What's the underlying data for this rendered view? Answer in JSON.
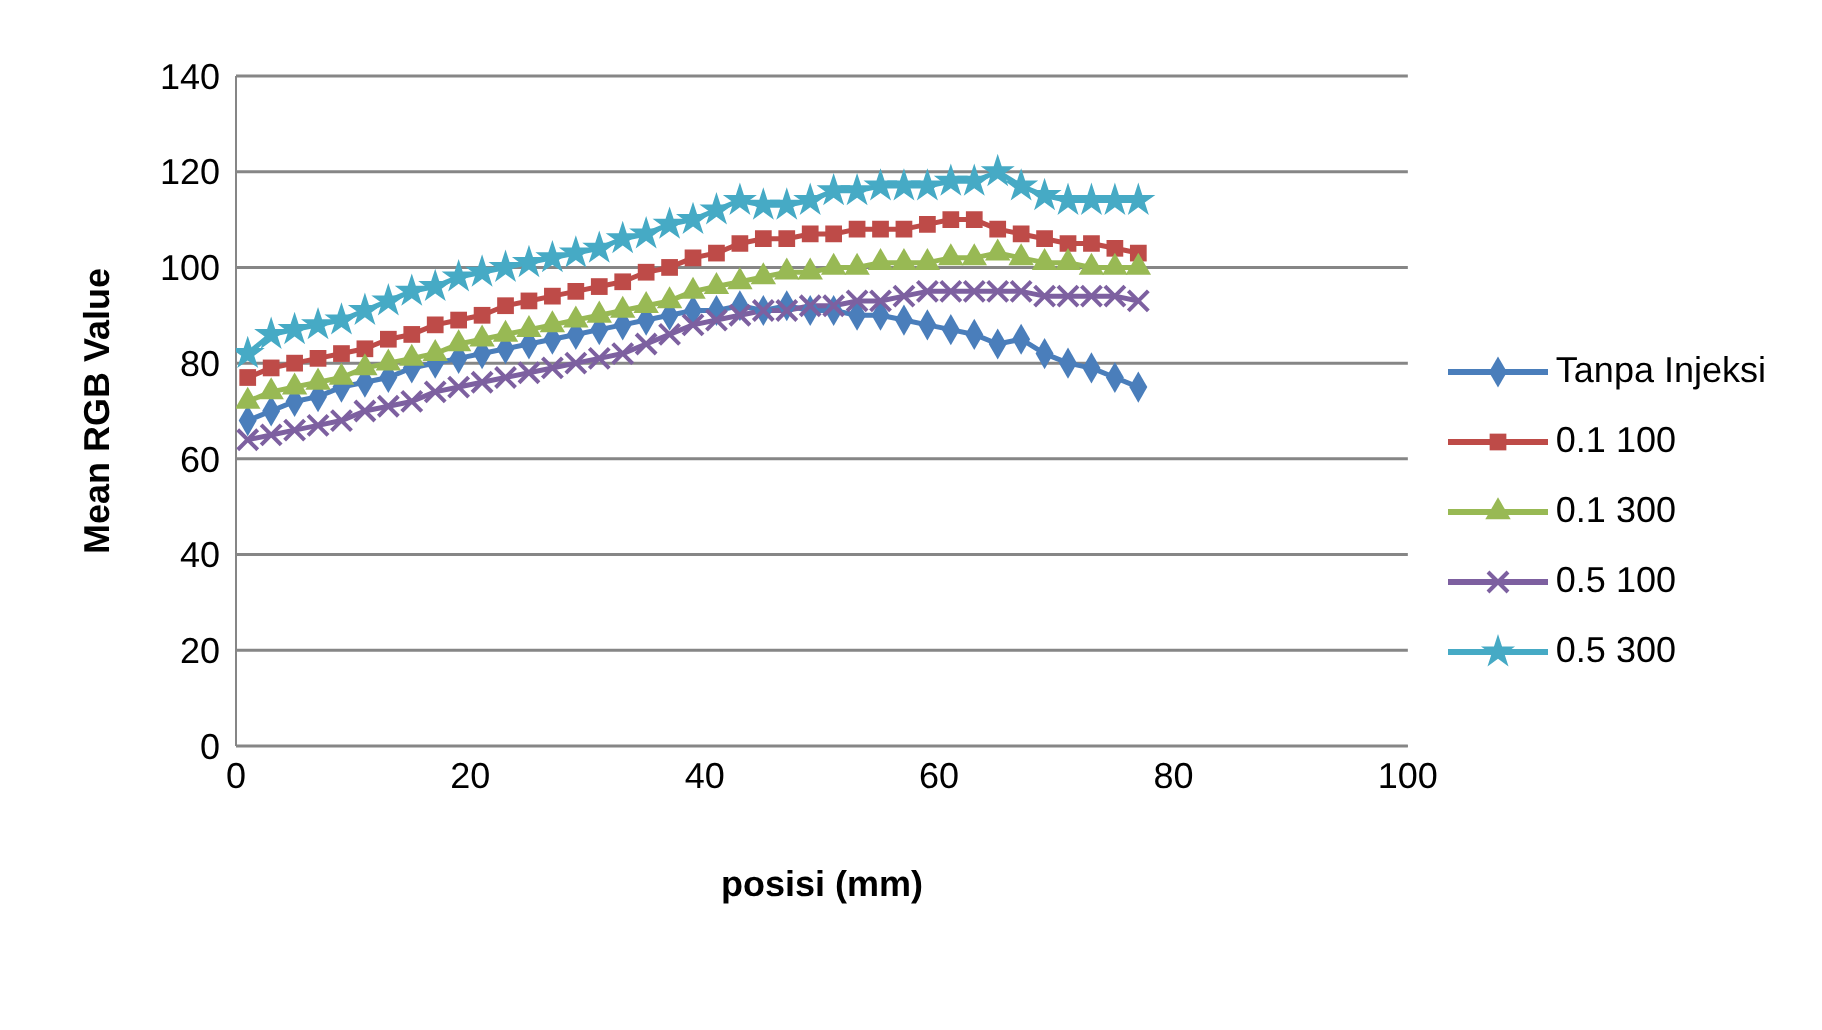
{
  "chart_data": {
    "type": "line",
    "xlabel": "posisi (mm)",
    "ylabel": "Mean RGB Value",
    "x": [
      1,
      3,
      5,
      7,
      9,
      11,
      13,
      15,
      17,
      19,
      21,
      23,
      25,
      27,
      29,
      31,
      33,
      35,
      37,
      39,
      41,
      43,
      45,
      47,
      49,
      51,
      53,
      55,
      57,
      59,
      61,
      63,
      65,
      67,
      69,
      71,
      73,
      75,
      77
    ],
    "series": [
      {
        "name": "Tanpa Injeksi",
        "color": "#4a7ebb",
        "marker": "diamond",
        "values": [
          68,
          70,
          72,
          73,
          75,
          76,
          77,
          79,
          80,
          81,
          82,
          83,
          84,
          85,
          86,
          87,
          88,
          89,
          90,
          91,
          91,
          92,
          91,
          92,
          91,
          91,
          90,
          90,
          89,
          88,
          87,
          86,
          84,
          85,
          82,
          80,
          79,
          77,
          75
        ]
      },
      {
        "name": "0.1 100",
        "color": "#be4b48",
        "marker": "square",
        "values": [
          77,
          79,
          80,
          81,
          82,
          83,
          85,
          86,
          88,
          89,
          90,
          92,
          93,
          94,
          95,
          96,
          97,
          99,
          100,
          102,
          103,
          105,
          106,
          106,
          107,
          107,
          108,
          108,
          108,
          109,
          110,
          110,
          108,
          107,
          106,
          105,
          105,
          104,
          103
        ]
      },
      {
        "name": "0.1 300",
        "color": "#98b954",
        "marker": "triangle",
        "values": [
          72,
          74,
          75,
          76,
          77,
          79,
          80,
          81,
          82,
          84,
          85,
          86,
          87,
          88,
          89,
          90,
          91,
          92,
          93,
          95,
          96,
          97,
          98,
          99,
          99,
          100,
          100,
          101,
          101,
          101,
          102,
          102,
          103,
          102,
          101,
          101,
          100,
          100,
          100
        ]
      },
      {
        "name": "0.5 100",
        "color": "#7d60a0",
        "marker": "cross",
        "values": [
          64,
          65,
          66,
          67,
          68,
          70,
          71,
          72,
          74,
          75,
          76,
          77,
          78,
          79,
          80,
          81,
          82,
          84,
          86,
          88,
          89,
          90,
          91,
          91,
          92,
          92,
          93,
          93,
          94,
          95,
          95,
          95,
          95,
          95,
          94,
          94,
          94,
          94,
          93
        ]
      },
      {
        "name": "0.5 300",
        "color": "#46aac5",
        "marker": "star",
        "values": [
          82,
          86,
          87,
          88,
          89,
          91,
          93,
          95,
          96,
          98,
          99,
          100,
          101,
          102,
          103,
          104,
          106,
          107,
          109,
          110,
          112,
          114,
          113,
          113,
          114,
          116,
          116,
          117,
          117,
          117,
          118,
          118,
          120,
          117,
          115,
          114,
          114,
          114,
          114
        ]
      }
    ],
    "xlim": [
      0,
      100
    ],
    "xticks": [
      0,
      20,
      40,
      60,
      80,
      100
    ],
    "ylim": [
      0,
      140
    ],
    "yticks": [
      0,
      20,
      40,
      60,
      80,
      100,
      120,
      140
    ],
    "grid": "y",
    "legend": "right"
  }
}
